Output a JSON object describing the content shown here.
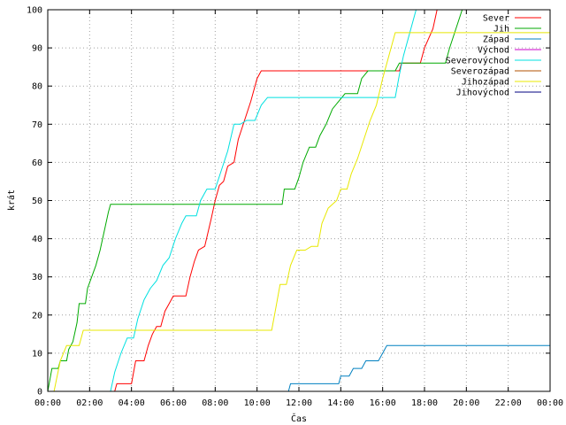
{
  "chart_data": {
    "type": "line",
    "xlabel": "Čas",
    "ylabel": "krát",
    "xlim": [
      0,
      24
    ],
    "ylim": [
      0,
      100
    ],
    "x_ticks": [
      "00:00",
      "02:00",
      "04:00",
      "06:00",
      "08:00",
      "10:00",
      "12:00",
      "14:00",
      "16:00",
      "18:00",
      "20:00",
      "22:00",
      "00:00"
    ],
    "y_ticks": [
      "0",
      "10",
      "20",
      "30",
      "40",
      "50",
      "60",
      "70",
      "80",
      "90",
      "100"
    ],
    "grid": true,
    "legend_position": "top-right",
    "series": [
      {
        "name": "Sever",
        "color": "#ff0000",
        "points": [
          [
            3.2,
            0
          ],
          [
            3.3,
            2
          ],
          [
            4.0,
            2
          ],
          [
            4.2,
            8
          ],
          [
            4.6,
            8
          ],
          [
            4.8,
            12
          ],
          [
            5.0,
            15
          ],
          [
            5.2,
            17
          ],
          [
            5.4,
            17
          ],
          [
            5.6,
            21
          ],
          [
            5.8,
            23
          ],
          [
            6.0,
            25
          ],
          [
            6.6,
            25
          ],
          [
            6.8,
            30
          ],
          [
            7.0,
            34
          ],
          [
            7.2,
            37
          ],
          [
            7.5,
            38
          ],
          [
            7.8,
            45
          ],
          [
            8.0,
            50
          ],
          [
            8.2,
            54
          ],
          [
            8.4,
            55
          ],
          [
            8.6,
            59
          ],
          [
            8.9,
            60
          ],
          [
            9.1,
            66
          ],
          [
            9.4,
            71
          ],
          [
            9.7,
            76
          ],
          [
            10.0,
            82
          ],
          [
            10.2,
            84
          ],
          [
            16.8,
            84
          ],
          [
            16.9,
            86
          ],
          [
            17.8,
            86
          ],
          [
            18.0,
            90
          ],
          [
            18.4,
            95
          ],
          [
            18.6,
            100
          ]
        ]
      },
      {
        "name": "Jih",
        "color": "#00aa00",
        "points": [
          [
            0.0,
            0
          ],
          [
            0.2,
            6
          ],
          [
            0.5,
            6
          ],
          [
            0.6,
            8
          ],
          [
            0.9,
            8
          ],
          [
            1.0,
            11
          ],
          [
            1.2,
            13
          ],
          [
            1.4,
            18
          ],
          [
            1.5,
            23
          ],
          [
            1.8,
            23
          ],
          [
            1.9,
            27
          ],
          [
            2.1,
            30
          ],
          [
            2.3,
            33
          ],
          [
            2.5,
            37
          ],
          [
            2.7,
            42
          ],
          [
            2.9,
            47
          ],
          [
            3.0,
            49
          ],
          [
            11.2,
            49
          ],
          [
            11.3,
            53
          ],
          [
            11.8,
            53
          ],
          [
            12.0,
            56
          ],
          [
            12.2,
            60
          ],
          [
            12.5,
            64
          ],
          [
            12.8,
            64
          ],
          [
            13.0,
            67
          ],
          [
            13.3,
            70
          ],
          [
            13.6,
            74
          ],
          [
            13.9,
            76
          ],
          [
            14.2,
            78
          ],
          [
            14.8,
            78
          ],
          [
            15.0,
            82
          ],
          [
            15.3,
            84
          ],
          [
            16.6,
            84
          ],
          [
            16.8,
            86
          ],
          [
            19.0,
            86
          ],
          [
            19.2,
            90
          ],
          [
            19.5,
            95
          ],
          [
            19.8,
            100
          ]
        ]
      },
      {
        "name": "Západ",
        "color": "#0080c0",
        "points": [
          [
            11.5,
            0
          ],
          [
            11.6,
            2
          ],
          [
            13.9,
            2
          ],
          [
            14.0,
            4
          ],
          [
            14.4,
            4
          ],
          [
            14.6,
            6
          ],
          [
            15.0,
            6
          ],
          [
            15.2,
            8
          ],
          [
            15.8,
            8
          ],
          [
            16.0,
            10
          ],
          [
            16.2,
            12
          ],
          [
            24.0,
            12
          ]
        ]
      },
      {
        "name": "Východ",
        "color": "#cc00cc",
        "points": []
      },
      {
        "name": "Severovýchod",
        "color": "#00e0e0",
        "points": [
          [
            3.0,
            0
          ],
          [
            3.2,
            5
          ],
          [
            3.5,
            10
          ],
          [
            3.8,
            14
          ],
          [
            4.1,
            14
          ],
          [
            4.3,
            19
          ],
          [
            4.6,
            24
          ],
          [
            4.9,
            27
          ],
          [
            5.2,
            29
          ],
          [
            5.5,
            33
          ],
          [
            5.8,
            35
          ],
          [
            6.1,
            40
          ],
          [
            6.4,
            44
          ],
          [
            6.6,
            46
          ],
          [
            7.1,
            46
          ],
          [
            7.3,
            50
          ],
          [
            7.6,
            53
          ],
          [
            8.0,
            53
          ],
          [
            8.3,
            58
          ],
          [
            8.6,
            63
          ],
          [
            8.9,
            70
          ],
          [
            9.2,
            70
          ],
          [
            9.5,
            71
          ],
          [
            9.9,
            71
          ],
          [
            10.2,
            75
          ],
          [
            10.5,
            77
          ],
          [
            16.6,
            77
          ],
          [
            16.8,
            83
          ],
          [
            17.0,
            88
          ],
          [
            17.3,
            94
          ],
          [
            17.6,
            100
          ]
        ]
      },
      {
        "name": "Severozápad",
        "color": "#b05000",
        "points": []
      },
      {
        "name": "Jihozápad",
        "color": "#e8e800",
        "points": [
          [
            0.3,
            0
          ],
          [
            0.6,
            8
          ],
          [
            0.9,
            12
          ],
          [
            1.5,
            12
          ],
          [
            1.7,
            16
          ],
          [
            10.7,
            16
          ],
          [
            10.9,
            22
          ],
          [
            11.1,
            28
          ],
          [
            11.4,
            28
          ],
          [
            11.6,
            33
          ],
          [
            11.9,
            37
          ],
          [
            12.3,
            37
          ],
          [
            12.6,
            38
          ],
          [
            12.9,
            38
          ],
          [
            13.1,
            44
          ],
          [
            13.4,
            48
          ],
          [
            13.8,
            50
          ],
          [
            14.0,
            53
          ],
          [
            14.3,
            53
          ],
          [
            14.5,
            57
          ],
          [
            14.8,
            61
          ],
          [
            15.1,
            66
          ],
          [
            15.4,
            71
          ],
          [
            15.7,
            75
          ],
          [
            16.0,
            82
          ],
          [
            16.3,
            88
          ],
          [
            16.6,
            94
          ],
          [
            24.0,
            94
          ]
        ]
      },
      {
        "name": "Jihovýchod",
        "color": "#000080",
        "points": []
      }
    ]
  }
}
